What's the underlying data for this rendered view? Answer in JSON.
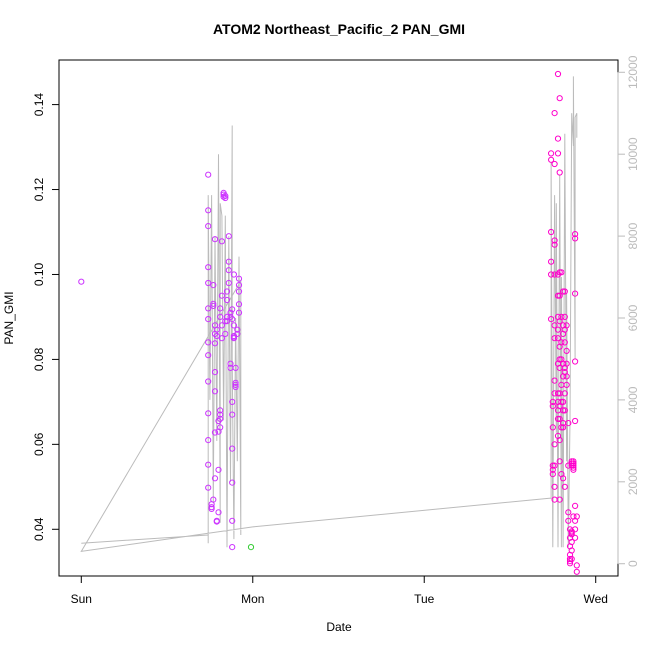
{
  "chart_data": {
    "type": "scatter",
    "title": "ATOM2 Northeast_Pacific_2 PAN_GMI",
    "xlabel": "Date",
    "ylabel": "PAN_GMI",
    "x_ticks": [
      {
        "value": 0,
        "label": "Sun"
      },
      {
        "value": 1,
        "label": "Mon"
      },
      {
        "value": 2,
        "label": "Tue"
      },
      {
        "value": 3,
        "label": "Wed"
      }
    ],
    "xlim": [
      -0.13,
      3.13
    ],
    "y_ticks": [
      0.04,
      0.06,
      0.08,
      0.1,
      0.12,
      0.14
    ],
    "ylim": [
      0.029,
      0.1505
    ],
    "y2_ticks": [
      0,
      2000,
      4000,
      6000,
      8000,
      10000,
      12000
    ],
    "y2lim": [
      -300,
      12300
    ],
    "colors": {
      "points_primary": "#ff00cc",
      "points_secondary": "#cc33ff",
      "points_accent": "#33cc33",
      "altitude_line": "#bbbbbb",
      "axis": "#000000",
      "axis_right": "#bbbbbb"
    },
    "series": [
      {
        "kind": "points",
        "color": "#cc33ff",
        "points": [
          [
            0.0,
            0.0983
          ],
          [
            0.74,
            0.1235
          ],
          [
            0.74,
            0.1151
          ],
          [
            0.74,
            0.1114
          ],
          [
            0.74,
            0.1017
          ],
          [
            0.74,
            0.098
          ],
          [
            0.74,
            0.092
          ],
          [
            0.74,
            0.0895
          ],
          [
            0.74,
            0.084
          ],
          [
            0.74,
            0.081
          ],
          [
            0.74,
            0.0748
          ],
          [
            0.74,
            0.0673
          ],
          [
            0.74,
            0.061
          ],
          [
            0.74,
            0.0552
          ],
          [
            0.74,
            0.0498
          ],
          [
            0.76,
            0.0459
          ],
          [
            0.76,
            0.0452
          ],
          [
            0.76,
            0.0448
          ],
          [
            0.77,
            0.047
          ],
          [
            0.77,
            0.0931
          ],
          [
            0.77,
            0.0926
          ],
          [
            0.77,
            0.0975
          ],
          [
            0.78,
            0.1083
          ],
          [
            0.78,
            0.088
          ],
          [
            0.78,
            0.086
          ],
          [
            0.78,
            0.0838
          ],
          [
            0.78,
            0.077
          ],
          [
            0.78,
            0.0725
          ],
          [
            0.78,
            0.0628
          ],
          [
            0.78,
            0.052
          ],
          [
            0.79,
            0.087
          ],
          [
            0.79,
            0.0855
          ],
          [
            0.79,
            0.042
          ],
          [
            0.79,
            0.0418
          ],
          [
            0.8,
            0.044
          ],
          [
            0.8,
            0.054
          ],
          [
            0.8,
            0.0655
          ],
          [
            0.8,
            0.063
          ],
          [
            0.81,
            0.064
          ],
          [
            0.81,
            0.066
          ],
          [
            0.81,
            0.067
          ],
          [
            0.81,
            0.068
          ],
          [
            0.81,
            0.09
          ],
          [
            0.81,
            0.092
          ],
          [
            0.82,
            0.095
          ],
          [
            0.82,
            0.088
          ],
          [
            0.82,
            0.085
          ],
          [
            0.82,
            0.1078
          ],
          [
            0.83,
            0.1183
          ],
          [
            0.83,
            0.1188
          ],
          [
            0.83,
            0.1192
          ],
          [
            0.84,
            0.118
          ],
          [
            0.84,
            0.1185
          ],
          [
            0.84,
            0.089
          ],
          [
            0.84,
            0.086
          ],
          [
            0.85,
            0.09
          ],
          [
            0.85,
            0.089
          ],
          [
            0.85,
            0.096
          ],
          [
            0.85,
            0.094
          ],
          [
            0.86,
            0.109
          ],
          [
            0.86,
            0.103
          ],
          [
            0.86,
            0.101
          ],
          [
            0.86,
            0.098
          ],
          [
            0.87,
            0.09
          ],
          [
            0.87,
            0.091
          ],
          [
            0.87,
            0.079
          ],
          [
            0.87,
            0.078
          ],
          [
            0.88,
            0.07
          ],
          [
            0.88,
            0.067
          ],
          [
            0.88,
            0.059
          ],
          [
            0.88,
            0.051
          ],
          [
            0.88,
            0.042
          ],
          [
            0.88,
            0.0358
          ],
          [
            0.89,
            0.1
          ],
          [
            0.89,
            0.088
          ],
          [
            0.89,
            0.085
          ],
          [
            0.9,
            0.074
          ],
          [
            0.9,
            0.0745
          ],
          [
            0.9,
            0.0735
          ],
          [
            0.9,
            0.078
          ],
          [
            0.91,
            0.086
          ],
          [
            0.91,
            0.087
          ],
          [
            0.92,
            0.099
          ],
          [
            0.92,
            0.0975
          ],
          [
            0.92,
            0.096
          ],
          [
            0.92,
            0.093
          ],
          [
            0.92,
            0.091
          ],
          [
            0.88,
            0.0918
          ],
          [
            0.88,
            0.0895
          ],
          [
            0.89,
            0.0855
          ],
          [
            0.89,
            0.0852
          ]
        ]
      },
      {
        "kind": "points",
        "color": "#ff00cc",
        "points": [
          [
            2.74,
            0.1285
          ],
          [
            2.74,
            0.127
          ],
          [
            2.74,
            0.11
          ],
          [
            2.74,
            0.103
          ],
          [
            2.74,
            0.1
          ],
          [
            2.74,
            0.0895
          ],
          [
            2.75,
            0.07
          ],
          [
            2.75,
            0.069
          ],
          [
            2.75,
            0.064
          ],
          [
            2.75,
            0.055
          ],
          [
            2.75,
            0.054
          ],
          [
            2.75,
            0.053
          ],
          [
            2.76,
            0.138
          ],
          [
            2.76,
            0.126
          ],
          [
            2.76,
            0.108
          ],
          [
            2.76,
            0.107
          ],
          [
            2.76,
            0.1
          ],
          [
            2.76,
            0.088
          ],
          [
            2.76,
            0.085
          ],
          [
            2.76,
            0.075
          ],
          [
            2.76,
            0.072
          ],
          [
            2.76,
            0.06
          ],
          [
            2.76,
            0.055
          ],
          [
            2.76,
            0.05
          ],
          [
            2.76,
            0.047
          ],
          [
            2.78,
            0.1472
          ],
          [
            2.78,
            0.132
          ],
          [
            2.78,
            0.1285
          ],
          [
            2.78,
            0.1
          ],
          [
            2.78,
            0.095
          ],
          [
            2.78,
            0.09
          ],
          [
            2.78,
            0.087
          ],
          [
            2.78,
            0.085
          ],
          [
            2.78,
            0.079
          ],
          [
            2.78,
            0.072
          ],
          [
            2.78,
            0.07
          ],
          [
            2.78,
            0.068
          ],
          [
            2.78,
            0.066
          ],
          [
            2.78,
            0.062
          ],
          [
            2.79,
            0.1415
          ],
          [
            2.79,
            0.124
          ],
          [
            2.79,
            0.1005
          ],
          [
            2.79,
            0.095
          ],
          [
            2.79,
            0.089
          ],
          [
            2.79,
            0.083
          ],
          [
            2.79,
            0.08
          ],
          [
            2.79,
            0.078
          ],
          [
            2.79,
            0.072
          ],
          [
            2.79,
            0.069
          ],
          [
            2.79,
            0.066
          ],
          [
            2.79,
            0.061
          ],
          [
            2.79,
            0.056
          ],
          [
            2.79,
            0.047
          ],
          [
            2.8,
            0.1005
          ],
          [
            2.8,
            0.09
          ],
          [
            2.8,
            0.084
          ],
          [
            2.8,
            0.08
          ],
          [
            2.8,
            0.074
          ],
          [
            2.8,
            0.07
          ],
          [
            2.8,
            0.064
          ],
          [
            2.8,
            0.053
          ],
          [
            2.81,
            0.096
          ],
          [
            2.81,
            0.088
          ],
          [
            2.81,
            0.086
          ],
          [
            2.81,
            0.079
          ],
          [
            2.81,
            0.076
          ],
          [
            2.81,
            0.07
          ],
          [
            2.81,
            0.068
          ],
          [
            2.81,
            0.065
          ],
          [
            2.81,
            0.064
          ],
          [
            2.81,
            0.052
          ],
          [
            2.82,
            0.096
          ],
          [
            2.82,
            0.09
          ],
          [
            2.82,
            0.087
          ],
          [
            2.82,
            0.084
          ],
          [
            2.82,
            0.078
          ],
          [
            2.82,
            0.077
          ],
          [
            2.82,
            0.072
          ],
          [
            2.82,
            0.068
          ],
          [
            2.82,
            0.05
          ],
          [
            2.83,
            0.088
          ],
          [
            2.83,
            0.082
          ],
          [
            2.83,
            0.079
          ],
          [
            2.83,
            0.076
          ],
          [
            2.83,
            0.074
          ],
          [
            2.84,
            0.065
          ],
          [
            2.84,
            0.055
          ],
          [
            2.84,
            0.044
          ],
          [
            2.84,
            0.042
          ],
          [
            2.85,
            0.04
          ],
          [
            2.85,
            0.038
          ],
          [
            2.85,
            0.036
          ],
          [
            2.85,
            0.034
          ],
          [
            2.85,
            0.033
          ],
          [
            2.85,
            0.0325
          ],
          [
            2.85,
            0.032
          ],
          [
            2.86,
            0.0395
          ],
          [
            2.86,
            0.0392
          ],
          [
            2.86,
            0.0388
          ],
          [
            2.86,
            0.037
          ],
          [
            2.86,
            0.035
          ],
          [
            2.86,
            0.033
          ],
          [
            2.86,
            0.055
          ],
          [
            2.86,
            0.056
          ],
          [
            2.86,
            0.0555
          ],
          [
            2.87,
            0.055
          ],
          [
            2.87,
            0.0545
          ],
          [
            2.87,
            0.054
          ],
          [
            2.87,
            0.056
          ],
          [
            2.87,
            0.0555
          ],
          [
            2.87,
            0.043
          ],
          [
            2.88,
            0.042
          ],
          [
            2.88,
            0.04
          ],
          [
            2.88,
            0.038
          ],
          [
            2.88,
            0.1095
          ],
          [
            2.88,
            0.1085
          ],
          [
            2.88,
            0.0955
          ],
          [
            2.88,
            0.0795
          ],
          [
            2.88,
            0.0655
          ],
          [
            2.88,
            0.0455
          ],
          [
            2.89,
            0.043
          ],
          [
            2.89,
            0.0315
          ],
          [
            2.89,
            0.03
          ]
        ]
      },
      {
        "kind": "points",
        "color": "#33cc33",
        "points": [
          [
            0.99,
            0.0358
          ]
        ]
      },
      {
        "kind": "line",
        "axis": "right",
        "color": "#bbbbbb",
        "points": [
          [
            0.0,
            500
          ],
          [
            0.74,
            700
          ],
          [
            0.74,
            500
          ],
          [
            0.74,
            9000
          ],
          [
            0.75,
            4000
          ],
          [
            0.76,
            9000
          ],
          [
            0.77,
            1500
          ],
          [
            0.78,
            8000
          ],
          [
            0.79,
            3000
          ],
          [
            0.8,
            10000
          ],
          [
            0.81,
            1000
          ],
          [
            0.81,
            8800
          ],
          [
            0.82,
            8500
          ],
          [
            0.83,
            3500
          ],
          [
            0.84,
            8500
          ],
          [
            0.85,
            400
          ],
          [
            0.86,
            8000
          ],
          [
            0.87,
            2000
          ],
          [
            0.88,
            10700
          ],
          [
            0.88,
            5000
          ],
          [
            0.89,
            600
          ],
          [
            0.9,
            6000
          ],
          [
            0.91,
            2500
          ],
          [
            0.92,
            7500
          ],
          [
            0.93,
            700
          ],
          [
            0.93,
            6900
          ],
          [
            0.0,
            300
          ],
          [
            1.0,
            900
          ],
          [
            2.73,
            1600
          ],
          [
            2.74,
            1600
          ],
          [
            2.74,
            9800
          ],
          [
            2.75,
            400
          ],
          [
            2.76,
            9000
          ],
          [
            2.77,
            3200
          ],
          [
            2.77,
            8800
          ],
          [
            2.78,
            400
          ],
          [
            2.79,
            9500
          ],
          [
            2.8,
            400
          ],
          [
            2.8,
            7000
          ],
          [
            2.81,
            400
          ],
          [
            2.82,
            10500
          ],
          [
            2.83,
            2500
          ],
          [
            2.83,
            6600
          ],
          [
            2.84,
            400
          ],
          [
            2.85,
            3500
          ],
          [
            2.86,
            11000
          ],
          [
            2.87,
            10200
          ],
          [
            2.87,
            11900
          ],
          [
            2.88,
            5000
          ],
          [
            2.88,
            10900
          ],
          [
            2.89,
            11000
          ],
          [
            2.89,
            10400
          ]
        ]
      }
    ]
  }
}
